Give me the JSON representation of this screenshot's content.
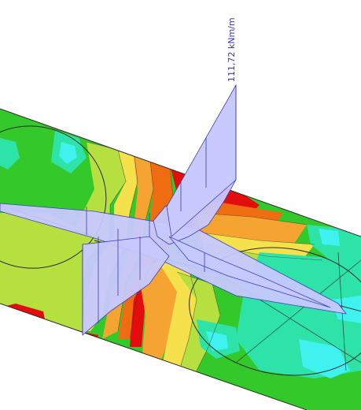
{
  "annotation": {
    "moment_value": "111,72 kNm/m"
  },
  "colors": {
    "contour_red": "#e30d0d",
    "contour_orange": "#ef6d10",
    "contour_light_orange": "#f5a431",
    "contour_yellow": "#f5e14c",
    "contour_yellow_green": "#b6e03f",
    "contour_green": "#33c92a",
    "contour_teal": "#2ee3a8",
    "contour_cyan": "#3ff2f0",
    "diagram_fill": "#c7c9ff",
    "diagram_stroke": "#3b3bbf"
  }
}
